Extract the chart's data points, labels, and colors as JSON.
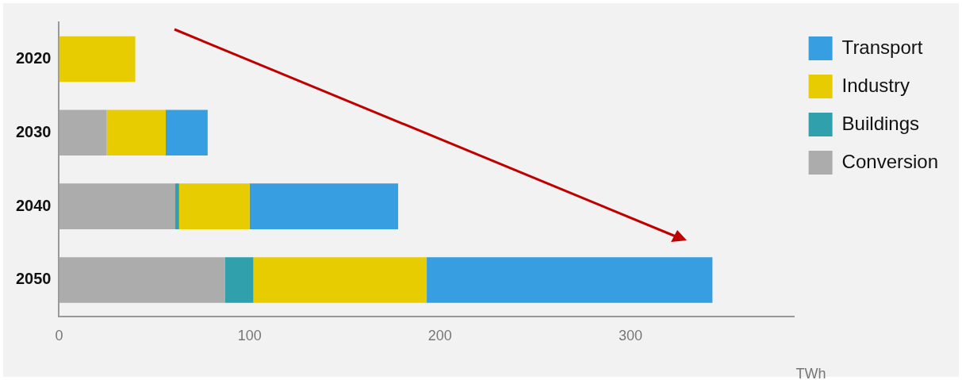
{
  "chart_data": {
    "type": "bar",
    "orientation": "horizontal",
    "stacked": true,
    "categories": [
      "2020",
      "2030",
      "2040",
      "2050"
    ],
    "series": [
      {
        "name": "Conversion",
        "color": "#abacab",
        "values": [
          null,
          25,
          61,
          87
        ]
      },
      {
        "name": "Buildings",
        "color": "#31a0ad",
        "values": [
          null,
          null,
          2,
          15
        ]
      },
      {
        "name": "Industry",
        "color": "#e6cc00",
        "values": [
          40,
          31,
          37,
          91
        ]
      },
      {
        "name": "Transport",
        "color": "#379fe1",
        "values": [
          null,
          22,
          78,
          150
        ]
      }
    ],
    "xlabel": "TWh",
    "xlim": [
      0,
      386
    ],
    "xticks": [
      0,
      100,
      200,
      300
    ],
    "grid": false,
    "legend": "top right"
  }
}
